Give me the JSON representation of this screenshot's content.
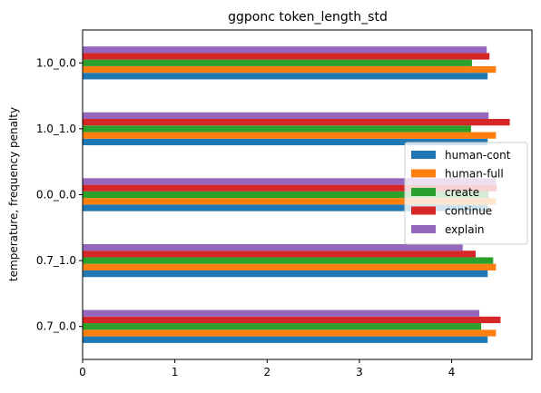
{
  "chart_data": {
    "type": "bar",
    "orientation": "horizontal",
    "title": "ggponc token_length_std",
    "xlabel": "",
    "ylabel": "temperature, frequency penalty",
    "categories": [
      "0.7_0.0",
      "0.7_1.0",
      "0.0_0.0",
      "1.0_1.0",
      "1.0_0.0"
    ],
    "xlim": [
      0,
      4.87
    ],
    "xticks": [
      "0",
      "1",
      "2",
      "3",
      "4"
    ],
    "grid": false,
    "legend_position": "center-right",
    "series": [
      {
        "name": "human-cont",
        "color": "#1f77b4",
        "values": [
          4.39,
          4.39,
          4.39,
          4.39,
          4.39
        ]
      },
      {
        "name": "human-full",
        "color": "#ff7f0e",
        "values": [
          4.48,
          4.48,
          4.48,
          4.48,
          4.48
        ]
      },
      {
        "name": "create",
        "color": "#2ca02c",
        "values": [
          4.32,
          4.45,
          4.4,
          4.21,
          4.22
        ]
      },
      {
        "name": "continue",
        "color": "#d62728",
        "values": [
          4.53,
          4.26,
          4.49,
          4.63,
          4.41
        ]
      },
      {
        "name": "explain",
        "color": "#9467bd",
        "values": [
          4.3,
          4.12,
          4.48,
          4.4,
          4.38
        ]
      }
    ]
  }
}
